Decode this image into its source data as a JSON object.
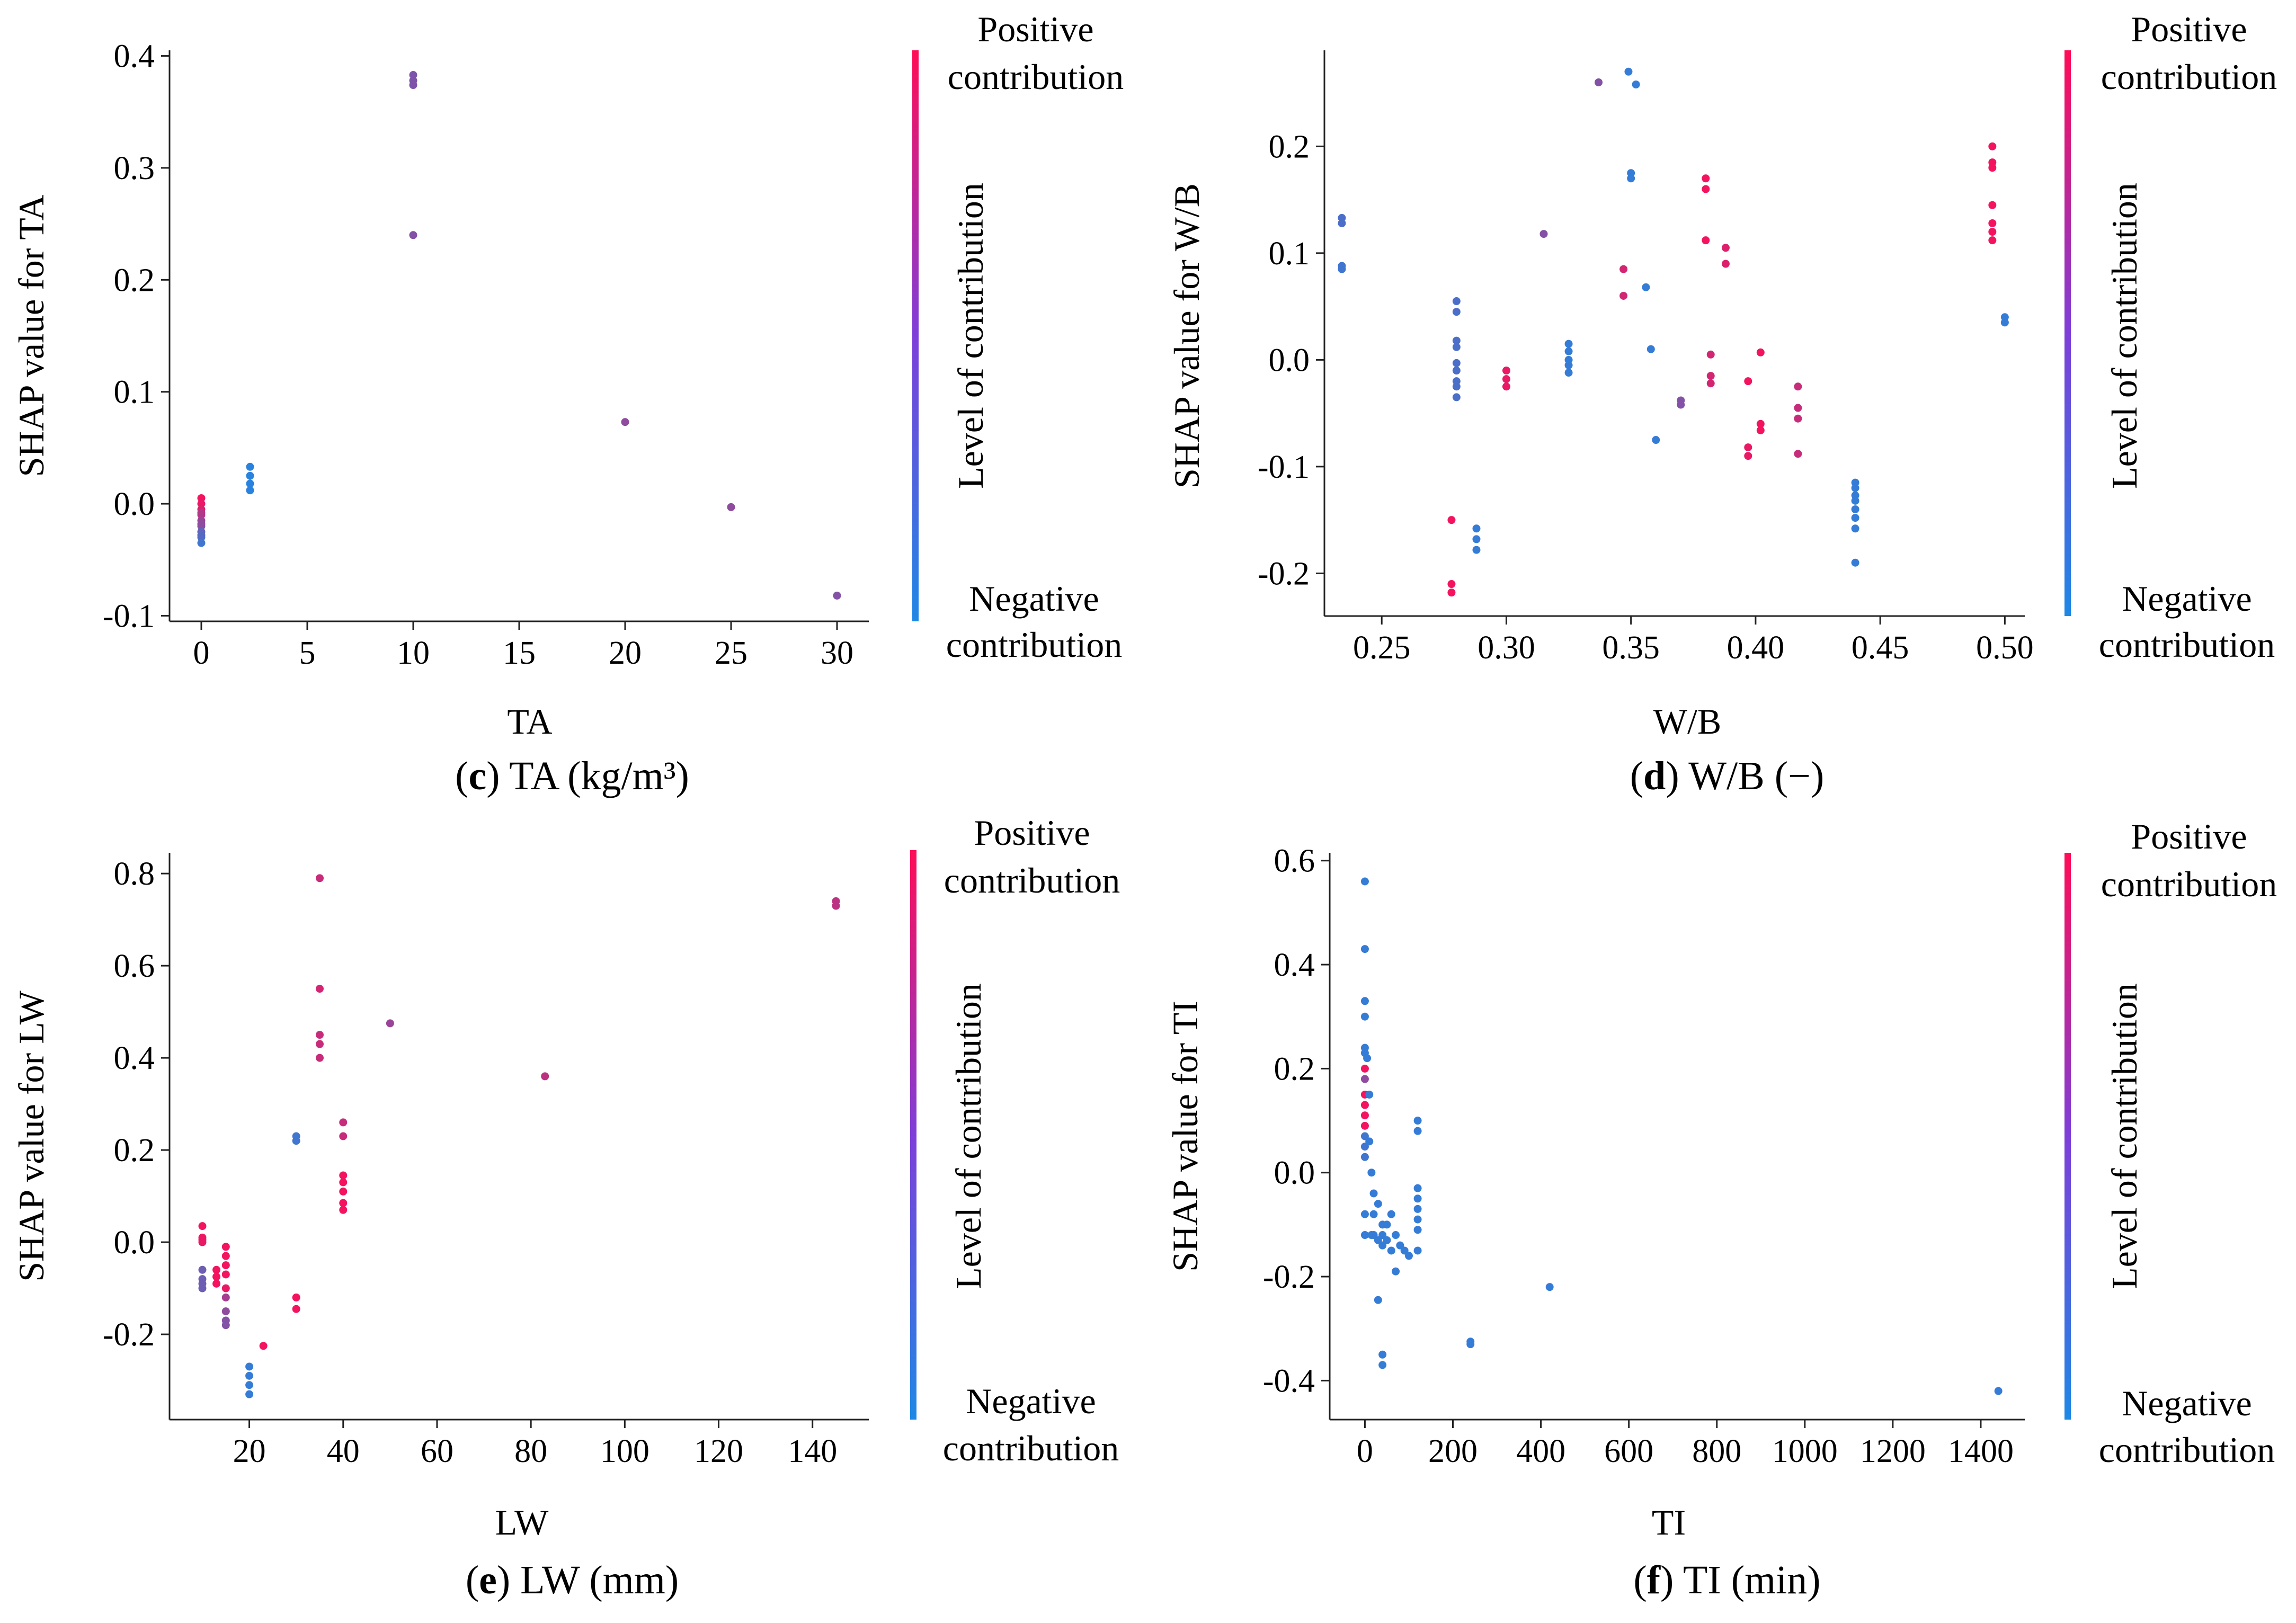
{
  "colors": {
    "positive": "#ff0d57",
    "negative": "#1e88e5"
  },
  "colorbar": {
    "top_line1": "Positive",
    "top_line2": "contribution",
    "mid": "Level of contribution",
    "bottom_line1": "Negative",
    "bottom_line2": "contribution"
  },
  "chart_data": [
    {
      "type": "scatter",
      "panel": "c",
      "caption_letter": "c",
      "caption_text": "TA (kg/m³)",
      "xlabel": "TA",
      "ylabel": "SHAP value for TA",
      "xlim": [
        -1.5,
        31.5
      ],
      "ylim": [
        -0.105,
        0.405
      ],
      "xticks": [
        0,
        5,
        10,
        15,
        20,
        25,
        30
      ],
      "xtick_labels": [
        "0",
        "5",
        "10",
        "15",
        "20",
        "25",
        "30"
      ],
      "yticks": [
        -0.1,
        0.0,
        0.1,
        0.2,
        0.3,
        0.4
      ],
      "ytick_labels": [
        "-0.1",
        "0.0",
        "0.1",
        "0.2",
        "0.3",
        "0.4"
      ],
      "points": [
        [
          0,
          0.005,
          0.95
        ],
        [
          0,
          0.0,
          0.9
        ],
        [
          0,
          -0.005,
          0.85
        ],
        [
          0,
          -0.01,
          0.7
        ],
        [
          0,
          -0.015,
          0.55
        ],
        [
          0,
          -0.02,
          0.4
        ],
        [
          0,
          -0.025,
          0.3
        ],
        [
          0,
          -0.03,
          0.2
        ],
        [
          0,
          -0.035,
          0.15
        ],
        [
          0,
          -0.018,
          0.5
        ],
        [
          0,
          -0.008,
          0.65
        ],
        [
          0,
          -0.028,
          0.25
        ],
        [
          2.3,
          0.033,
          0.05
        ],
        [
          2.3,
          0.025,
          0.05
        ],
        [
          2.3,
          0.018,
          0.05
        ],
        [
          2.3,
          0.012,
          0.05
        ],
        [
          10,
          0.383,
          0.42
        ],
        [
          10,
          0.378,
          0.42
        ],
        [
          10,
          0.374,
          0.42
        ],
        [
          10,
          0.24,
          0.45
        ],
        [
          20,
          0.073,
          0.5
        ],
        [
          25,
          -0.003,
          0.5
        ],
        [
          30,
          -0.082,
          0.45
        ]
      ]
    },
    {
      "type": "scatter",
      "panel": "d",
      "caption_letter": "d",
      "caption_text": "W/B (−)",
      "xlabel": "W/B",
      "ylabel": "SHAP value for W/B",
      "xlim": [
        0.227,
        0.508
      ],
      "ylim": [
        -0.24,
        0.29
      ],
      "xticks": [
        0.25,
        0.3,
        0.35,
        0.4,
        0.45,
        0.5
      ],
      "xtick_labels": [
        "0.25",
        "0.30",
        "0.35",
        "0.40",
        "0.45",
        "0.50"
      ],
      "yticks": [
        -0.2,
        -0.1,
        0.0,
        0.1,
        0.2
      ],
      "ytick_labels": [
        "-0.2",
        "-0.1",
        "0.0",
        "0.1",
        "0.2"
      ],
      "points": [
        [
          0.234,
          0.133,
          0.2
        ],
        [
          0.234,
          0.128,
          0.2
        ],
        [
          0.234,
          0.088,
          0.15
        ],
        [
          0.234,
          0.085,
          0.15
        ],
        [
          0.278,
          -0.15,
          0.95
        ],
        [
          0.278,
          -0.21,
          0.95
        ],
        [
          0.278,
          -0.218,
          0.95
        ],
        [
          0.28,
          0.055,
          0.2
        ],
        [
          0.28,
          0.045,
          0.2
        ],
        [
          0.28,
          0.018,
          0.2
        ],
        [
          0.28,
          0.012,
          0.2
        ],
        [
          0.28,
          -0.003,
          0.2
        ],
        [
          0.28,
          -0.01,
          0.2
        ],
        [
          0.28,
          -0.02,
          0.2
        ],
        [
          0.28,
          -0.025,
          0.2
        ],
        [
          0.28,
          -0.035,
          0.2
        ],
        [
          0.288,
          -0.158,
          0.1
        ],
        [
          0.288,
          -0.168,
          0.1
        ],
        [
          0.288,
          -0.178,
          0.1
        ],
        [
          0.3,
          -0.01,
          0.9
        ],
        [
          0.3,
          -0.018,
          0.9
        ],
        [
          0.3,
          -0.025,
          0.9
        ],
        [
          0.315,
          0.118,
          0.45
        ],
        [
          0.325,
          0.015,
          0.1
        ],
        [
          0.325,
          0.008,
          0.1
        ],
        [
          0.325,
          0.0,
          0.1
        ],
        [
          0.325,
          -0.005,
          0.1
        ],
        [
          0.325,
          -0.012,
          0.1
        ],
        [
          0.337,
          0.26,
          0.45
        ],
        [
          0.347,
          0.085,
          0.8
        ],
        [
          0.347,
          0.06,
          0.8
        ],
        [
          0.349,
          0.27,
          0.1
        ],
        [
          0.35,
          0.175,
          0.1
        ],
        [
          0.35,
          0.17,
          0.1
        ],
        [
          0.352,
          0.258,
          0.1
        ],
        [
          0.356,
          0.068,
          0.1
        ],
        [
          0.358,
          0.01,
          0.1
        ],
        [
          0.36,
          -0.075,
          0.1
        ],
        [
          0.37,
          -0.038,
          0.45
        ],
        [
          0.37,
          -0.042,
          0.45
        ],
        [
          0.38,
          0.17,
          0.95
        ],
        [
          0.38,
          0.16,
          0.95
        ],
        [
          0.38,
          0.112,
          0.95
        ],
        [
          0.382,
          0.005,
          0.8
        ],
        [
          0.382,
          -0.015,
          0.8
        ],
        [
          0.382,
          -0.022,
          0.8
        ],
        [
          0.388,
          0.105,
          0.85
        ],
        [
          0.388,
          0.09,
          0.85
        ],
        [
          0.397,
          -0.02,
          0.95
        ],
        [
          0.397,
          -0.082,
          0.9
        ],
        [
          0.397,
          -0.09,
          0.9
        ],
        [
          0.402,
          0.007,
          0.95
        ],
        [
          0.402,
          -0.06,
          0.95
        ],
        [
          0.402,
          -0.066,
          0.95
        ],
        [
          0.417,
          -0.025,
          0.75
        ],
        [
          0.417,
          -0.045,
          0.75
        ],
        [
          0.417,
          -0.055,
          0.75
        ],
        [
          0.417,
          -0.088,
          0.75
        ],
        [
          0.44,
          -0.115,
          0.1
        ],
        [
          0.44,
          -0.12,
          0.1
        ],
        [
          0.44,
          -0.127,
          0.1
        ],
        [
          0.44,
          -0.132,
          0.1
        ],
        [
          0.44,
          -0.14,
          0.1
        ],
        [
          0.44,
          -0.148,
          0.1
        ],
        [
          0.44,
          -0.158,
          0.1
        ],
        [
          0.44,
          -0.19,
          0.1
        ],
        [
          0.495,
          0.2,
          0.95
        ],
        [
          0.495,
          0.185,
          0.95
        ],
        [
          0.495,
          0.18,
          0.95
        ],
        [
          0.495,
          0.145,
          0.95
        ],
        [
          0.495,
          0.128,
          0.95
        ],
        [
          0.495,
          0.12,
          0.95
        ],
        [
          0.495,
          0.112,
          0.95
        ],
        [
          0.5,
          0.04,
          0.1
        ],
        [
          0.5,
          0.035,
          0.1
        ]
      ]
    },
    {
      "type": "scatter",
      "panel": "e",
      "caption_letter": "e",
      "caption_text": "LW (mm)",
      "xlabel": "LW",
      "ylabel": "SHAP value for LW",
      "xlim": [
        3,
        152
      ],
      "ylim": [
        -0.385,
        0.845
      ],
      "xticks": [
        20,
        40,
        60,
        80,
        100,
        120,
        140
      ],
      "xtick_labels": [
        "20",
        "40",
        "60",
        "80",
        "100",
        "120",
        "140"
      ],
      "yticks": [
        -0.2,
        0.0,
        0.2,
        0.4,
        0.6,
        0.8
      ],
      "ytick_labels": [
        "-0.2",
        "0.0",
        "0.2",
        "0.4",
        "0.6",
        "0.8"
      ],
      "points": [
        [
          10,
          0.035,
          0.95
        ],
        [
          10,
          0.01,
          0.95
        ],
        [
          10,
          0.005,
          0.9
        ],
        [
          10,
          0.0,
          0.9
        ],
        [
          10,
          -0.06,
          0.35
        ],
        [
          10,
          -0.08,
          0.35
        ],
        [
          10,
          -0.1,
          0.35
        ],
        [
          10,
          -0.09,
          0.35
        ],
        [
          13,
          -0.06,
          0.95
        ],
        [
          13,
          -0.075,
          0.95
        ],
        [
          13,
          -0.09,
          0.95
        ],
        [
          15,
          -0.01,
          0.95
        ],
        [
          15,
          -0.03,
          0.95
        ],
        [
          15,
          -0.05,
          0.95
        ],
        [
          15,
          -0.07,
          0.95
        ],
        [
          15,
          -0.1,
          0.9
        ],
        [
          15,
          -0.12,
          0.6
        ],
        [
          15,
          -0.15,
          0.5
        ],
        [
          15,
          -0.17,
          0.45
        ],
        [
          15,
          -0.18,
          0.45
        ],
        [
          20,
          -0.27,
          0.1
        ],
        [
          20,
          -0.29,
          0.1
        ],
        [
          20,
          -0.31,
          0.1
        ],
        [
          20,
          -0.33,
          0.1
        ],
        [
          23,
          -0.225,
          0.95
        ],
        [
          30,
          0.22,
          0.15
        ],
        [
          30,
          0.23,
          0.15
        ],
        [
          30,
          -0.12,
          0.95
        ],
        [
          30,
          -0.145,
          0.95
        ],
        [
          35,
          0.79,
          0.75
        ],
        [
          35,
          0.55,
          0.8
        ],
        [
          35,
          0.45,
          0.75
        ],
        [
          35,
          0.43,
          0.75
        ],
        [
          35,
          0.4,
          0.75
        ],
        [
          40,
          0.26,
          0.75
        ],
        [
          40,
          0.23,
          0.75
        ],
        [
          40,
          0.145,
          0.95
        ],
        [
          40,
          0.13,
          0.95
        ],
        [
          40,
          0.11,
          0.95
        ],
        [
          40,
          0.085,
          0.95
        ],
        [
          40,
          0.07,
          0.95
        ],
        [
          50,
          0.475,
          0.55
        ],
        [
          83,
          0.36,
          0.7
        ],
        [
          145,
          0.74,
          0.7
        ],
        [
          145,
          0.73,
          0.7
        ]
      ]
    },
    {
      "type": "scatter",
      "panel": "f",
      "caption_letter": "f",
      "caption_text": "TI (min)",
      "xlabel": "TI",
      "ylabel": "SHAP value for TI",
      "xlim": [
        -80,
        1500
      ],
      "ylim": [
        -0.475,
        0.615
      ],
      "xticks": [
        0,
        200,
        400,
        600,
        800,
        1000,
        1200,
        1400
      ],
      "xtick_labels": [
        "0",
        "200",
        "400",
        "600",
        "800",
        "1000",
        "1200",
        "1400"
      ],
      "yticks": [
        -0.4,
        -0.2,
        0.0,
        0.2,
        0.4,
        0.6
      ],
      "ytick_labels": [
        "-0.4",
        "-0.2",
        "0.0",
        "0.2",
        "0.4",
        "0.6"
      ],
      "points": [
        [
          0,
          0.56,
          0.1
        ],
        [
          0,
          0.43,
          0.1
        ],
        [
          0,
          0.33,
          0.1
        ],
        [
          0,
          0.3,
          0.1
        ],
        [
          0,
          0.24,
          0.1
        ],
        [
          0,
          0.23,
          0.1
        ],
        [
          0,
          0.2,
          0.95
        ],
        [
          0,
          0.18,
          0.5
        ],
        [
          0,
          0.15,
          0.95
        ],
        [
          0,
          0.13,
          0.95
        ],
        [
          0,
          0.11,
          0.95
        ],
        [
          0,
          0.09,
          0.95
        ],
        [
          0,
          0.07,
          0.15
        ],
        [
          0,
          0.05,
          0.15
        ],
        [
          0,
          0.03,
          0.15
        ],
        [
          0,
          -0.08,
          0.1
        ],
        [
          0,
          -0.12,
          0.1
        ],
        [
          5,
          0.22,
          0.1
        ],
        [
          10,
          0.15,
          0.1
        ],
        [
          10,
          0.06,
          0.1
        ],
        [
          15,
          0.0,
          0.1
        ],
        [
          15,
          -0.12,
          0.1
        ],
        [
          20,
          -0.04,
          0.1
        ],
        [
          20,
          -0.08,
          0.1
        ],
        [
          20,
          -0.12,
          0.1
        ],
        [
          30,
          -0.06,
          0.1
        ],
        [
          30,
          -0.13,
          0.1
        ],
        [
          30,
          -0.245,
          0.1
        ],
        [
          40,
          -0.1,
          0.1
        ],
        [
          40,
          -0.12,
          0.1
        ],
        [
          40,
          -0.14,
          0.1
        ],
        [
          40,
          -0.35,
          0.1
        ],
        [
          40,
          -0.37,
          0.1
        ],
        [
          50,
          -0.1,
          0.1
        ],
        [
          50,
          -0.13,
          0.1
        ],
        [
          60,
          -0.08,
          0.1
        ],
        [
          60,
          -0.15,
          0.1
        ],
        [
          70,
          -0.12,
          0.1
        ],
        [
          70,
          -0.19,
          0.1
        ],
        [
          80,
          -0.14,
          0.1
        ],
        [
          90,
          -0.15,
          0.1
        ],
        [
          100,
          -0.16,
          0.1
        ],
        [
          120,
          0.1,
          0.1
        ],
        [
          120,
          0.08,
          0.1
        ],
        [
          120,
          -0.03,
          0.1
        ],
        [
          120,
          -0.05,
          0.1
        ],
        [
          120,
          -0.07,
          0.1
        ],
        [
          120,
          -0.09,
          0.1
        ],
        [
          120,
          -0.11,
          0.1
        ],
        [
          120,
          -0.15,
          0.1
        ],
        [
          240,
          -0.325,
          0.1
        ],
        [
          240,
          -0.33,
          0.1
        ],
        [
          420,
          -0.22,
          0.1
        ],
        [
          1440,
          -0.42,
          0.1
        ]
      ]
    }
  ]
}
